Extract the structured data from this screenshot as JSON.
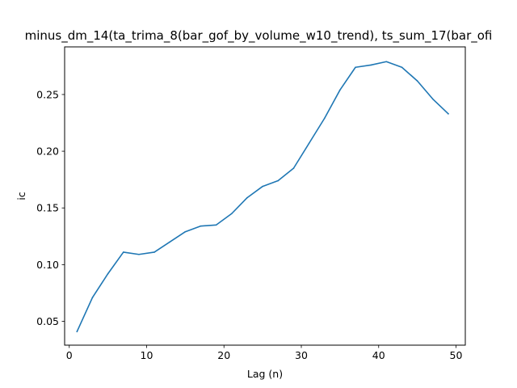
{
  "chart_data": {
    "type": "line",
    "title": "minus_dm_14(ta_trima_8(bar_gof_by_volume_w10_trend), ts_sum_17(bar_ofi",
    "xlabel": "Lag (n)",
    "ylabel": "ic",
    "xlim": [
      -0.6,
      51.2
    ],
    "ylim": [
      0.029,
      0.292
    ],
    "xticks": [
      0,
      10,
      20,
      30,
      40,
      50
    ],
    "yticks": [
      0.05,
      0.1,
      0.15,
      0.2,
      0.25
    ],
    "ytick_labels": [
      "0.05",
      "0.10",
      "0.15",
      "0.20",
      "0.25"
    ],
    "grid": false,
    "series": [
      {
        "color": "#1f77b4",
        "x": [
          1,
          3,
          5,
          7,
          9,
          11,
          13,
          15,
          17,
          19,
          21,
          23,
          25,
          27,
          29,
          31,
          33,
          35,
          37,
          39,
          41,
          43,
          45,
          47,
          49
        ],
        "y": [
          0.041,
          0.071,
          0.092,
          0.111,
          0.109,
          0.111,
          0.12,
          0.129,
          0.134,
          0.135,
          0.145,
          0.159,
          0.169,
          0.174,
          0.185,
          0.207,
          0.229,
          0.254,
          0.274,
          0.276,
          0.279,
          0.274,
          0.262,
          0.246,
          0.233
        ]
      }
    ]
  }
}
